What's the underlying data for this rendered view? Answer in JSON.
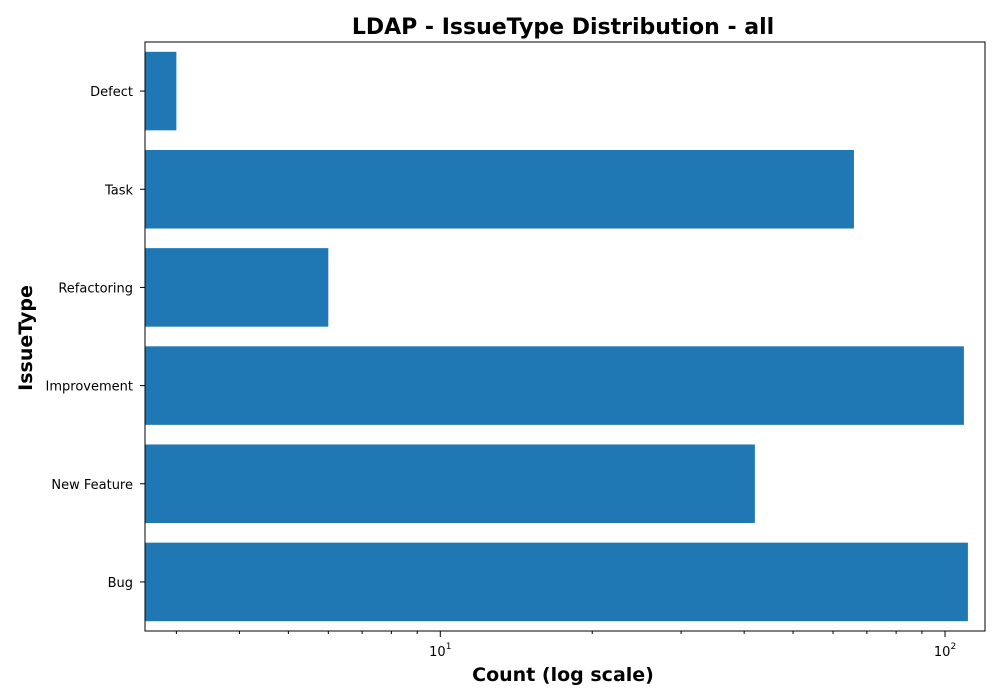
{
  "chart_data": {
    "type": "bar",
    "orientation": "horizontal",
    "title": "LDAP - IssueType Distribution - all",
    "xlabel": "Count (log scale)",
    "ylabel": "IssueType",
    "x_scale": "log",
    "xlim": [
      2.6,
      120
    ],
    "x_ticks": [
      {
        "base": "10",
        "exp": "1",
        "value": 10
      },
      {
        "base": "10",
        "exp": "2",
        "value": 100
      }
    ],
    "categories": [
      "Bug",
      "New Feature",
      "Improvement",
      "Refactoring",
      "Task",
      "Defect"
    ],
    "values": [
      111,
      42,
      109,
      6,
      66,
      3
    ],
    "bar_color": "#1f77b4",
    "grid": false,
    "legend": false
  }
}
